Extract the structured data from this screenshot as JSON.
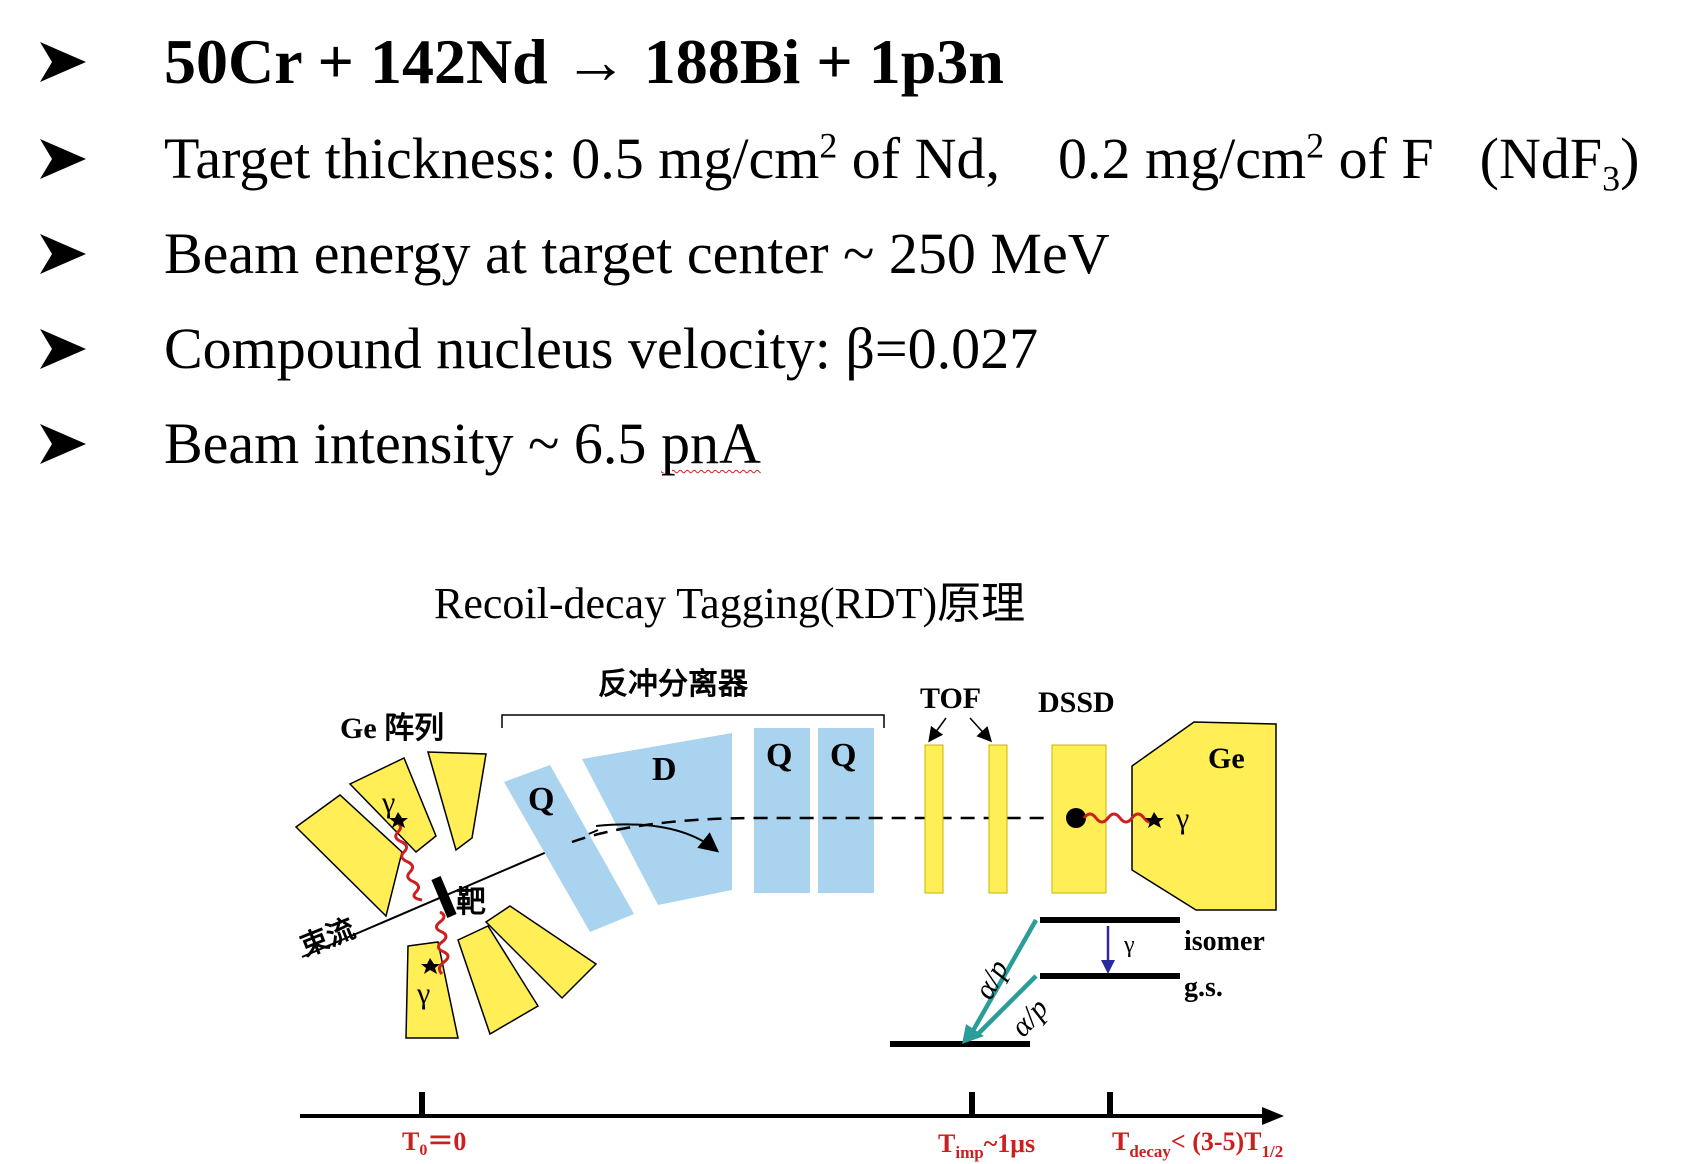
{
  "bullets": {
    "b0": "50Cr + 142Nd → 188Bi + 1p3n",
    "b1_a": "Target thickness: 0.5 mg/cm",
    "b1_sup1": "2",
    "b1_b": " of Nd,",
    "b1_c": "0.2 mg/cm",
    "b1_sup2": "2",
    "b1_d": " of F",
    "b1_e": "(NdF",
    "b1_sub": "3",
    "b1_f": ")",
    "b2": "Beam energy at target center ~ 250 MeV",
    "b3": "Compound nucleus velocity: β=0.027",
    "b4_a": "Beam intensity ~ 6.5 ",
    "b4_b": "pnA"
  },
  "diagram": {
    "title": "Recoil-decay Tagging(RDT)原理",
    "separator_label": "反冲分离器",
    "ge_array_label": "Ge 阵列",
    "tof_label": "TOF",
    "dssd_label": "DSSD",
    "ge_label": "Ge",
    "q1_label": "Q",
    "d_label": "D",
    "q2_label": "Q",
    "q3_label": "Q",
    "gamma": "γ",
    "target_label": "靶",
    "beam_label": "束流",
    "isomer_label": "isomer",
    "gs_label": "g.s.",
    "alpha_p": "α/p",
    "timeline": {
      "t0": "T",
      "t0_sub": "0",
      "t0_rest": "＝0",
      "timp": "T",
      "timp_sub": "imp",
      "timp_rest": "~1μs",
      "tdecay": "T",
      "tdecay_sub": "decay",
      "tdecay_rest": "< (3-5)T",
      "thalf_sub": "1/2"
    }
  },
  "colors": {
    "yellow": "#ffee55",
    "blue": "#a9d3ee",
    "red": "#cc1f1f",
    "teal": "#2a9d9a",
    "navy": "#2a2a9a"
  }
}
